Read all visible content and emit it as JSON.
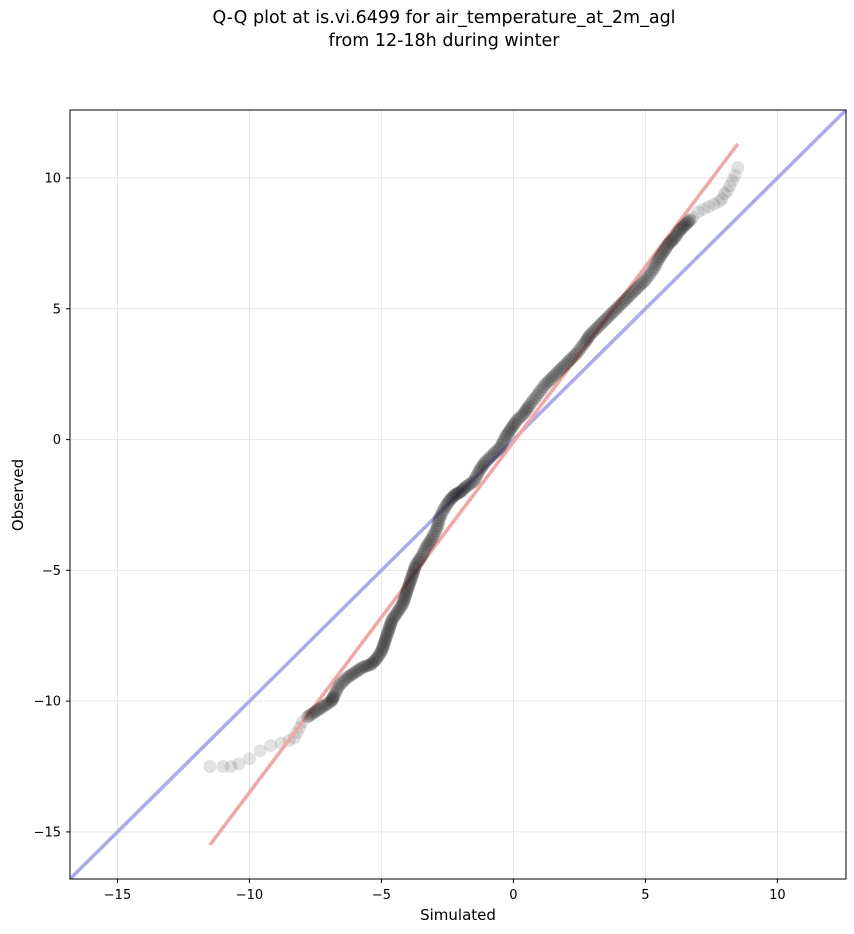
{
  "chart_data": {
    "type": "scatter",
    "title_line1": "Q-Q plot at is.vi.6499 for air_temperature_at_2m_agl",
    "title_line2": "from 12-18h during winter",
    "xlabel": "Simulated",
    "ylabel": "Observed",
    "xlim": [
      -16.8,
      12.6
    ],
    "ylim": [
      -16.8,
      12.6
    ],
    "xticks": [
      -15,
      -10,
      -5,
      0,
      5,
      10
    ],
    "yticks": [
      -15,
      -10,
      -5,
      0,
      5,
      10
    ],
    "xtick_labels": [
      "−15",
      "−10",
      "−5",
      "0",
      "5",
      "10"
    ],
    "ytick_labels": [
      "−15",
      "−10",
      "−5",
      "0",
      "5",
      "10"
    ],
    "grid": true,
    "reference_line": {
      "color": "#aaaaf2",
      "x": [
        -16.8,
        12.6
      ],
      "y": [
        -16.8,
        12.6
      ]
    },
    "fit_line": {
      "color": "#f4a6a6",
      "x": [
        -11.5,
        8.5
      ],
      "y": [
        -15.5,
        11.3
      ]
    },
    "tail_points": [
      [
        -11.5,
        -12.5
      ],
      [
        -11.0,
        -12.5
      ],
      [
        -10.7,
        -12.5
      ],
      [
        -10.4,
        -12.4
      ],
      [
        -10.0,
        -12.2
      ],
      [
        -9.6,
        -11.9
      ],
      [
        -9.2,
        -11.7
      ],
      [
        -8.8,
        -11.6
      ],
      [
        -8.5,
        -11.5
      ],
      [
        -8.3,
        -11.4
      ],
      [
        -8.2,
        -11.2
      ],
      [
        -8.1,
        -11.0
      ],
      [
        -8.0,
        -10.8
      ],
      [
        6.8,
        8.5
      ],
      [
        7.0,
        8.7
      ],
      [
        7.2,
        8.8
      ],
      [
        7.4,
        8.9
      ],
      [
        7.6,
        9.0
      ],
      [
        7.8,
        9.1
      ],
      [
        7.9,
        9.2
      ],
      [
        8.0,
        9.4
      ],
      [
        8.1,
        9.5
      ],
      [
        8.2,
        9.7
      ],
      [
        8.3,
        9.9
      ],
      [
        8.4,
        10.1
      ],
      [
        8.5,
        10.4
      ]
    ],
    "main_points": [
      [
        -7.8,
        -10.6
      ],
      [
        -7.5,
        -10.4
      ],
      [
        -7.2,
        -10.2
      ],
      [
        -6.9,
        -10.0
      ],
      [
        -6.8,
        -9.8
      ],
      [
        -6.6,
        -9.4
      ],
      [
        -6.3,
        -9.1
      ],
      [
        -6.0,
        -8.9
      ],
      [
        -5.7,
        -8.7
      ],
      [
        -5.4,
        -8.6
      ],
      [
        -5.2,
        -8.4
      ],
      [
        -5.0,
        -8.1
      ],
      [
        -4.9,
        -7.8
      ],
      [
        -4.8,
        -7.5
      ],
      [
        -4.7,
        -7.2
      ],
      [
        -4.6,
        -6.9
      ],
      [
        -4.4,
        -6.6
      ],
      [
        -4.2,
        -6.3
      ],
      [
        -4.1,
        -6.0
      ],
      [
        -4.0,
        -5.7
      ],
      [
        -3.9,
        -5.4
      ],
      [
        -3.8,
        -5.1
      ],
      [
        -3.7,
        -4.8
      ],
      [
        -3.5,
        -4.5
      ],
      [
        -3.3,
        -4.1
      ],
      [
        -3.1,
        -3.8
      ],
      [
        -2.9,
        -3.4
      ],
      [
        -2.8,
        -3.0
      ],
      [
        -2.6,
        -2.6
      ],
      [
        -2.4,
        -2.3
      ],
      [
        -2.2,
        -2.1
      ],
      [
        -2.0,
        -2.0
      ],
      [
        -1.8,
        -1.8
      ],
      [
        -1.5,
        -1.6
      ],
      [
        -1.3,
        -1.2
      ],
      [
        -1.1,
        -0.9
      ],
      [
        -0.8,
        -0.6
      ],
      [
        -0.5,
        -0.3
      ],
      [
        -0.3,
        0.1
      ],
      [
        -0.1,
        0.4
      ],
      [
        0.1,
        0.7
      ],
      [
        0.4,
        1.0
      ],
      [
        0.6,
        1.3
      ],
      [
        0.9,
        1.7
      ],
      [
        1.2,
        2.1
      ],
      [
        1.5,
        2.4
      ],
      [
        1.8,
        2.7
      ],
      [
        2.1,
        3.0
      ],
      [
        2.4,
        3.3
      ],
      [
        2.7,
        3.7
      ],
      [
        2.9,
        4.0
      ],
      [
        3.2,
        4.3
      ],
      [
        3.5,
        4.6
      ],
      [
        3.8,
        4.9
      ],
      [
        4.1,
        5.2
      ],
      [
        4.4,
        5.5
      ],
      [
        4.7,
        5.8
      ],
      [
        5.0,
        6.1
      ],
      [
        5.3,
        6.5
      ],
      [
        5.5,
        6.9
      ],
      [
        5.7,
        7.2
      ],
      [
        5.9,
        7.5
      ],
      [
        6.1,
        7.7
      ],
      [
        6.3,
        8.0
      ],
      [
        6.5,
        8.2
      ],
      [
        6.7,
        8.4
      ]
    ],
    "point_color": "#1e1e1e"
  }
}
